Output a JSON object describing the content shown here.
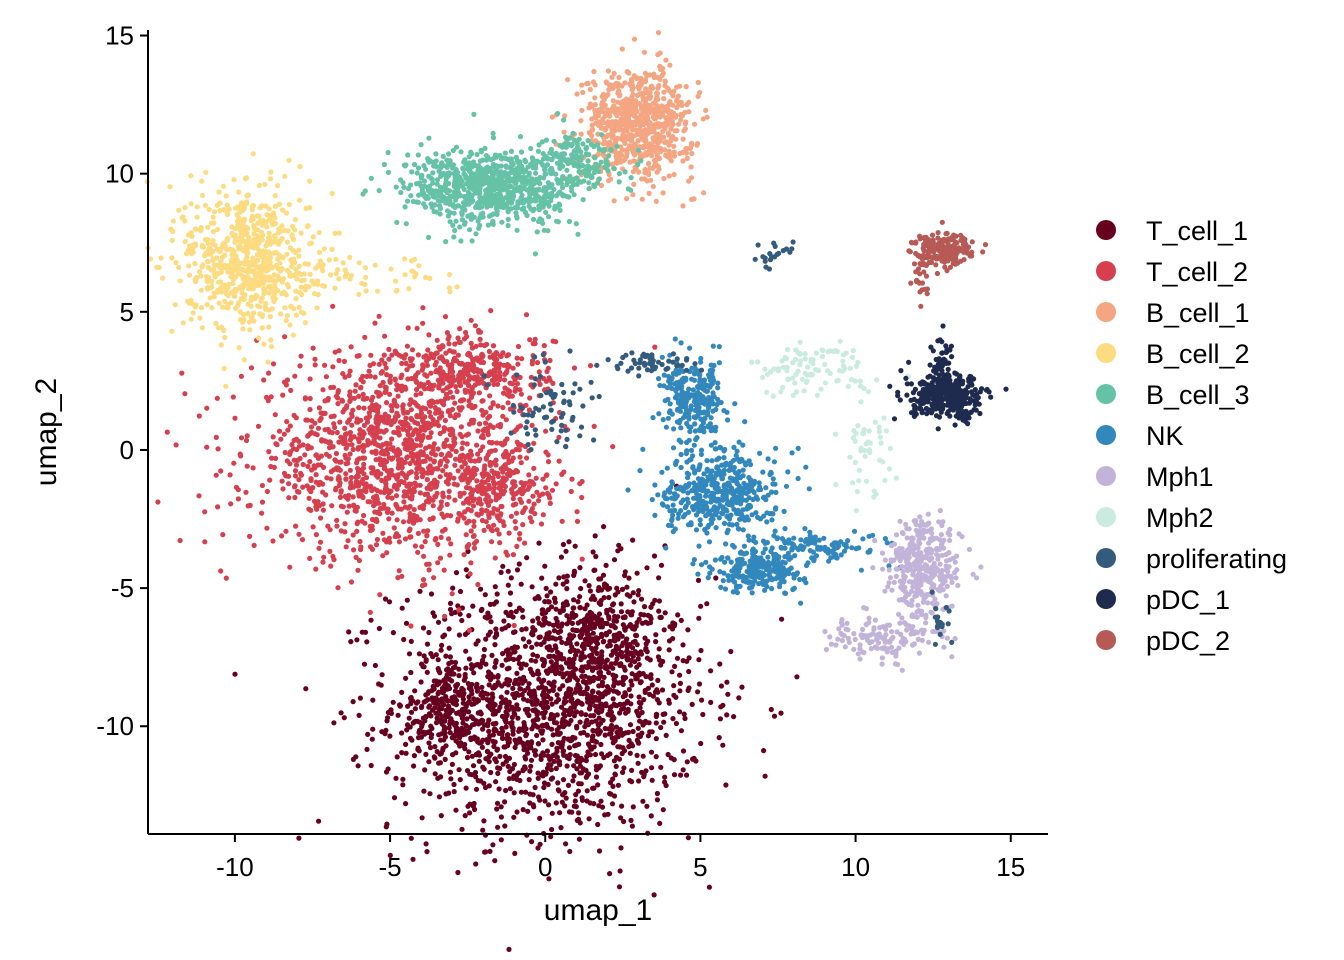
{
  "chart_data": {
    "type": "scatter",
    "xlabel": "umap_1",
    "ylabel": "umap_2",
    "xlim": [
      -12.8,
      16.2
    ],
    "ylim": [
      -13.9,
      15.2
    ],
    "xticks": [
      -10,
      -5,
      0,
      5,
      10,
      15
    ],
    "yticks": [
      -10,
      -5,
      0,
      5,
      10,
      15
    ],
    "xtick_labels": [
      "-10",
      "-5",
      "0",
      "5",
      "10",
      "15"
    ],
    "ytick_labels": [
      "-10",
      "-5",
      "0",
      "5",
      "10",
      "15"
    ],
    "grid": false,
    "legend_position": "right",
    "series": [
      {
        "name": "T_cell_1",
        "color": "#67001F",
        "clusters": [
          {
            "cx": 0.1,
            "cy": -9.2,
            "sx": 2.5,
            "sy": 2.3,
            "n": 1600
          },
          {
            "cx": 1.8,
            "cy": -6.8,
            "sx": 0.9,
            "sy": 1.4,
            "n": 300
          },
          {
            "cx": -3.0,
            "cy": -9.5,
            "sx": 0.7,
            "sy": 0.9,
            "n": 180
          }
        ]
      },
      {
        "name": "T_cell_2",
        "color": "#D6404E",
        "clusters": [
          {
            "cx": -4.8,
            "cy": -0.2,
            "sx": 2.3,
            "sy": 1.8,
            "n": 1400
          },
          {
            "cx": -2.2,
            "cy": 2.8,
            "sx": 1.2,
            "sy": 0.7,
            "n": 300
          },
          {
            "cx": -1.5,
            "cy": -1.5,
            "sx": 0.8,
            "sy": 0.8,
            "n": 200
          }
        ]
      },
      {
        "name": "B_cell_1",
        "color": "#F4A582",
        "clusters": [
          {
            "cx": 3.0,
            "cy": 11.8,
            "sx": 0.9,
            "sy": 1.0,
            "n": 700
          }
        ]
      },
      {
        "name": "B_cell_2",
        "color": "#FDDB80",
        "clusters": [
          {
            "cx": -9.6,
            "cy": 6.9,
            "sx": 1.0,
            "sy": 1.3,
            "n": 700
          },
          {
            "cx": -6.3,
            "cy": 6.4,
            "sx": 1.5,
            "sy": 0.4,
            "n": 60
          }
        ]
      },
      {
        "name": "B_cell_3",
        "color": "#66C2A4",
        "clusters": [
          {
            "cx": -1.7,
            "cy": 9.5,
            "sx": 1.4,
            "sy": 0.7,
            "n": 800
          },
          {
            "cx": 1.1,
            "cy": 10.5,
            "sx": 0.6,
            "sy": 0.5,
            "n": 150
          }
        ]
      },
      {
        "name": "NK",
        "color": "#3288BD",
        "clusters": [
          {
            "cx": 4.8,
            "cy": 1.8,
            "sx": 0.5,
            "sy": 0.7,
            "n": 250
          },
          {
            "cx": 5.6,
            "cy": -1.5,
            "sx": 0.9,
            "sy": 0.8,
            "n": 450
          },
          {
            "cx": 6.9,
            "cy": -4.3,
            "sx": 0.7,
            "sy": 0.4,
            "n": 250
          },
          {
            "cx": 9.0,
            "cy": -3.5,
            "sx": 1.0,
            "sy": 0.3,
            "n": 100
          }
        ]
      },
      {
        "name": "Mph1",
        "color": "#C2B4D8",
        "clusters": [
          {
            "cx": 12.2,
            "cy": -4.3,
            "sx": 0.6,
            "sy": 0.9,
            "n": 350
          },
          {
            "cx": 10.8,
            "cy": -6.8,
            "sx": 0.9,
            "sy": 0.4,
            "n": 120
          }
        ]
      },
      {
        "name": "Mph2",
        "color": "#C9EBE0",
        "clusters": [
          {
            "cx": 8.4,
            "cy": 2.9,
            "sx": 0.9,
            "sy": 0.5,
            "n": 90
          },
          {
            "cx": 10.3,
            "cy": 0.2,
            "sx": 0.5,
            "sy": 1.0,
            "n": 50
          }
        ]
      },
      {
        "name": "proliferating",
        "color": "#355B7C",
        "clusters": [
          {
            "cx": 0.2,
            "cy": 1.6,
            "sx": 0.8,
            "sy": 0.8,
            "n": 70
          },
          {
            "cx": 3.4,
            "cy": 3.1,
            "sx": 0.8,
            "sy": 0.2,
            "n": 50
          },
          {
            "cx": 7.4,
            "cy": 7.0,
            "sx": 0.3,
            "sy": 0.3,
            "n": 20
          },
          {
            "cx": 12.7,
            "cy": -6.3,
            "sx": 0.2,
            "sy": 0.3,
            "n": 20
          }
        ]
      },
      {
        "name": "pDC_1",
        "color": "#1E2A4E",
        "clusters": [
          {
            "cx": 13.0,
            "cy": 1.9,
            "sx": 0.6,
            "sy": 0.4,
            "n": 350
          },
          {
            "cx": 12.8,
            "cy": 3.4,
            "sx": 0.15,
            "sy": 0.4,
            "n": 40
          }
        ]
      },
      {
        "name": "pDC_2",
        "color": "#B75A55",
        "clusters": [
          {
            "cx": 12.8,
            "cy": 7.3,
            "sx": 0.5,
            "sy": 0.3,
            "n": 200
          },
          {
            "cx": 12.1,
            "cy": 6.1,
            "sx": 0.15,
            "sy": 0.4,
            "n": 20
          }
        ]
      }
    ]
  }
}
